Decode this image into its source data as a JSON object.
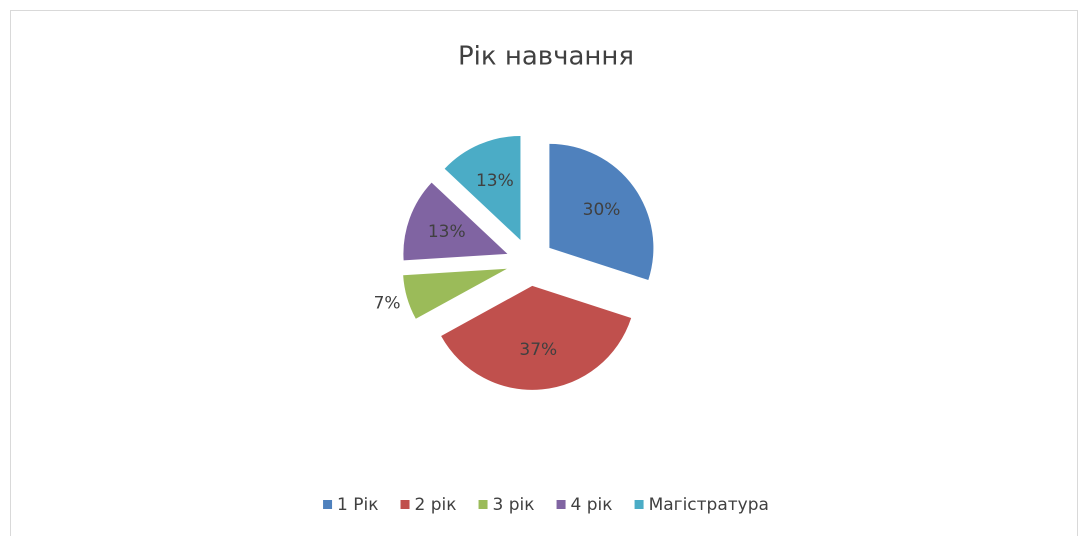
{
  "chart_data": {
    "type": "pie",
    "title": "Рік навчання",
    "categories": [
      "1 Рік",
      "2 рік",
      "3 рік",
      "4 рік",
      "Магістратура"
    ],
    "values": [
      30,
      37,
      7,
      13,
      13
    ],
    "value_labels": [
      "30%",
      "37%",
      "7%",
      "13%",
      "13%"
    ],
    "colors": [
      "#4f81bd",
      "#c0504d",
      "#9bbb59",
      "#8064a2",
      "#4bacc6"
    ],
    "legend": "bottom"
  }
}
